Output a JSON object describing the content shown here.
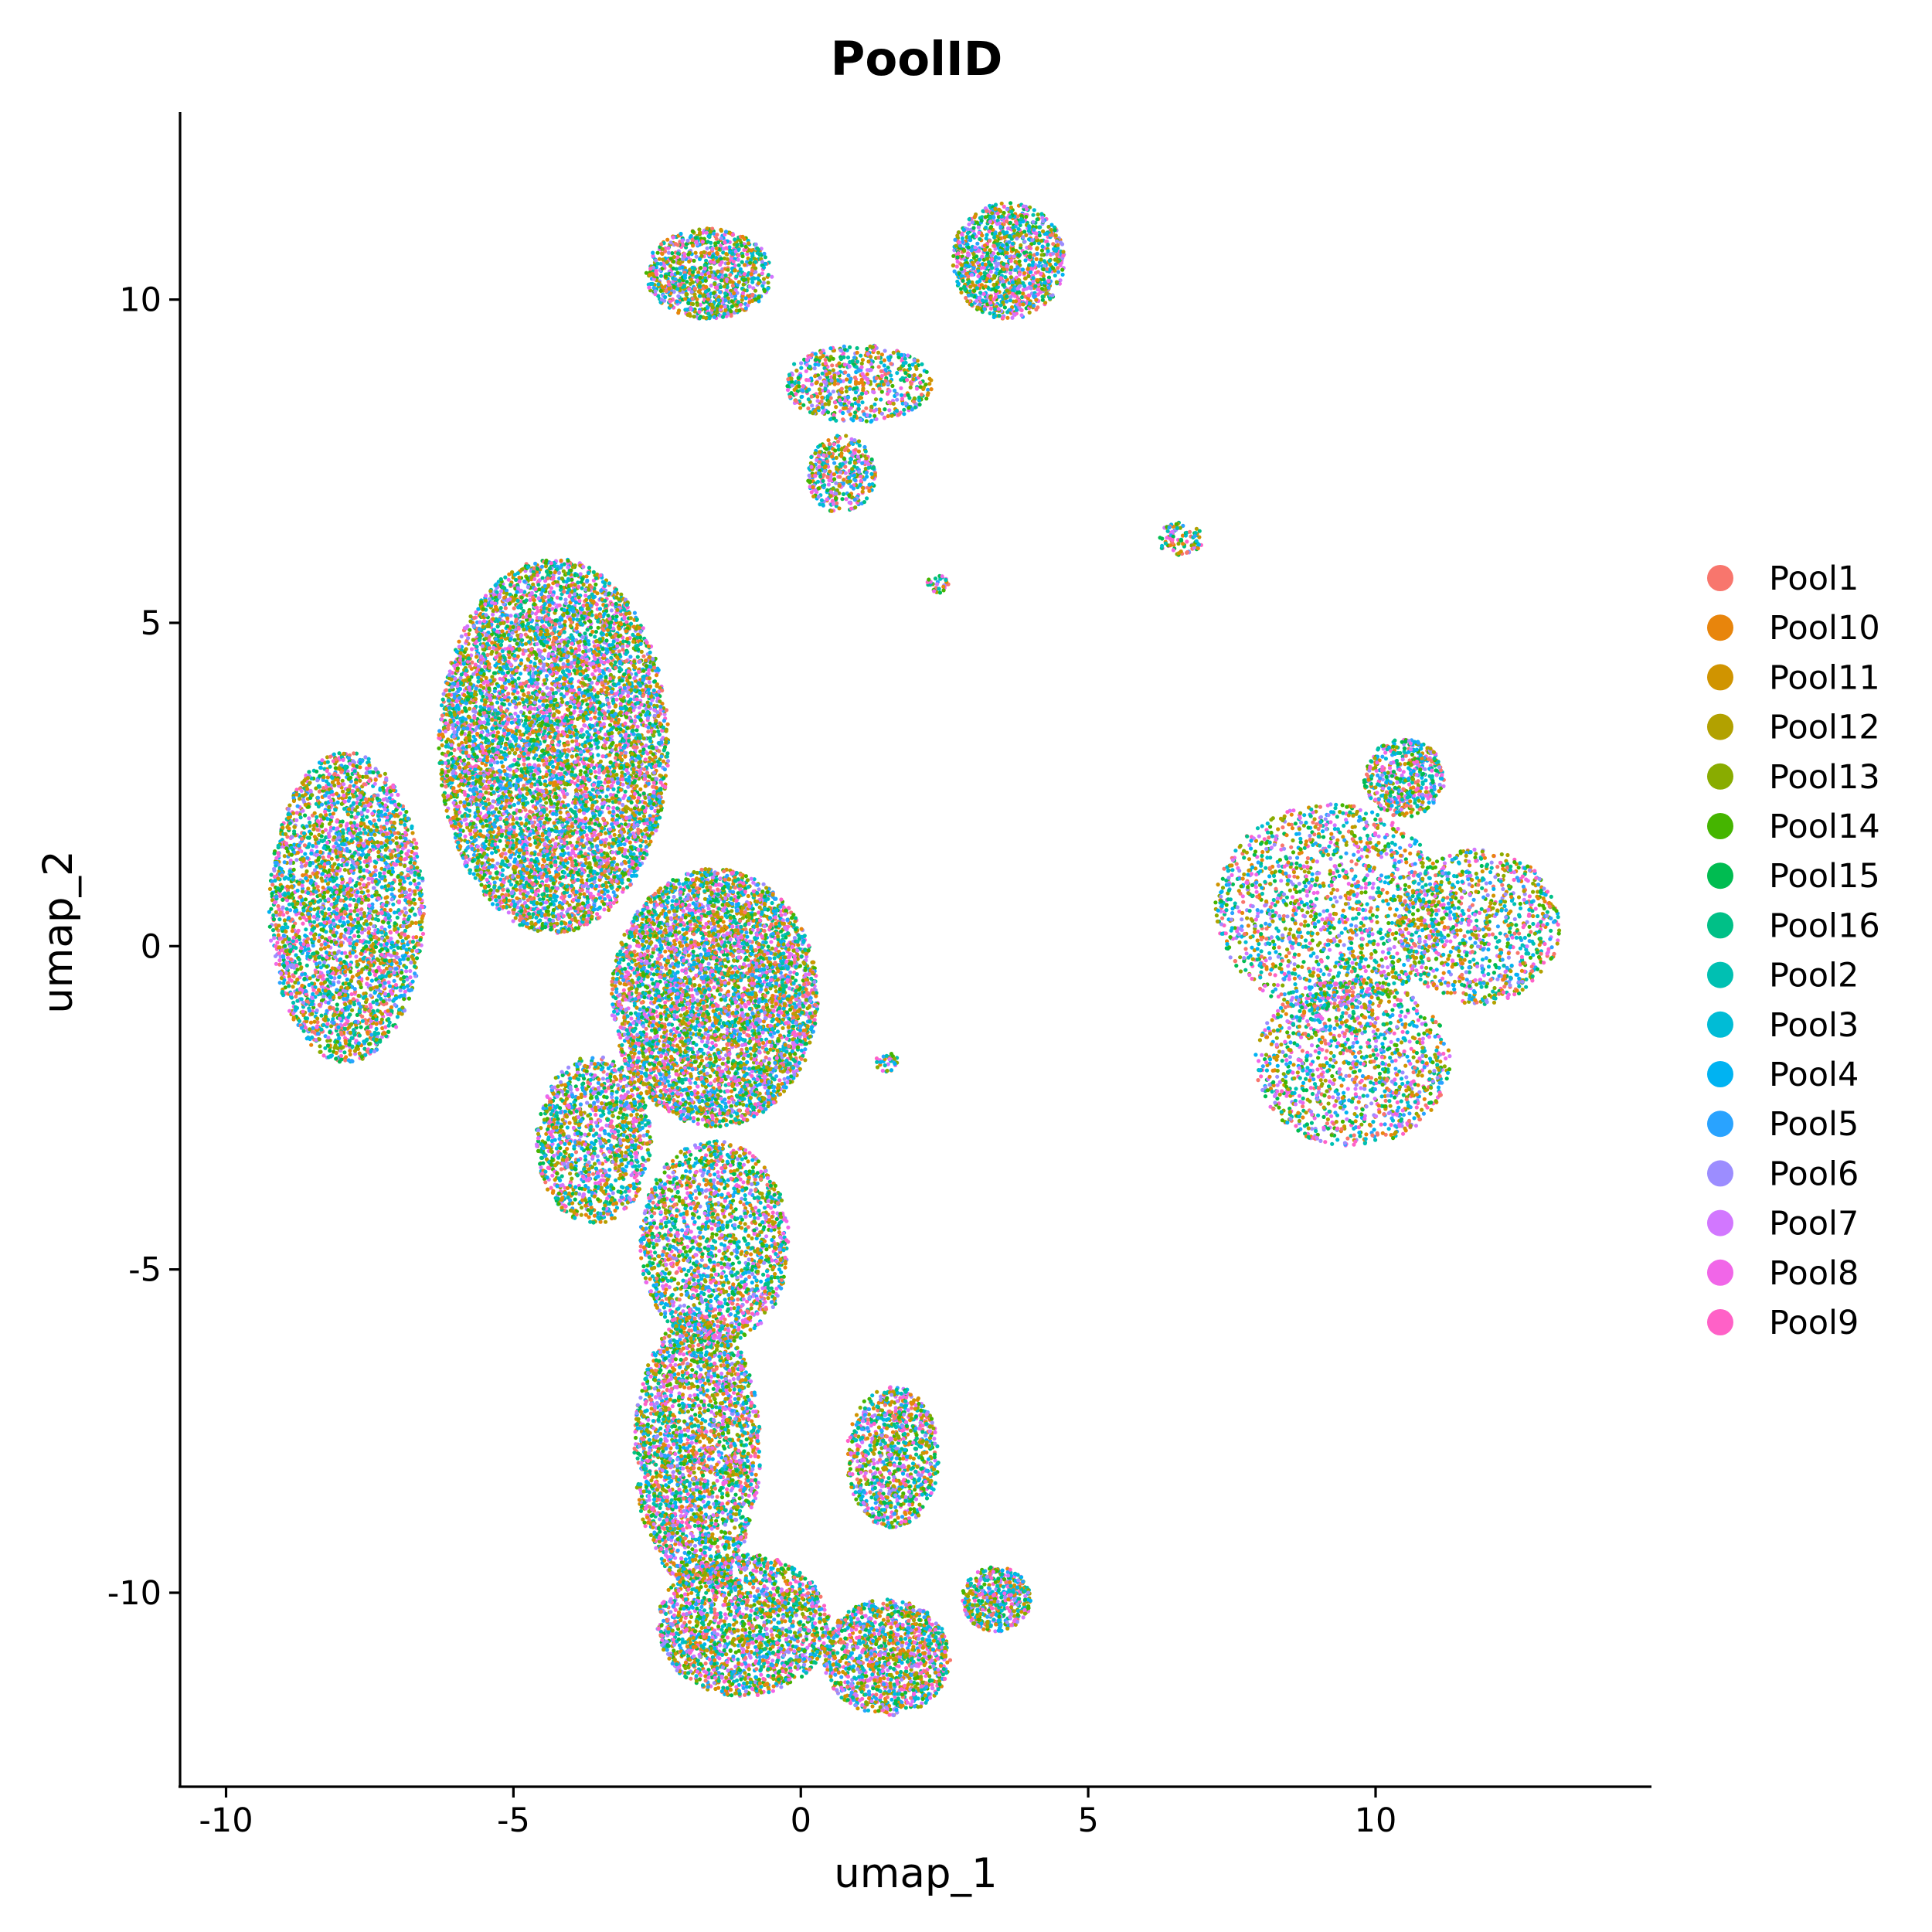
{
  "chart_data": {
    "type": "scatter",
    "title": "PoolID",
    "xlabel": "umap_1",
    "ylabel": "umap_2",
    "xlim": [
      -10.8,
      14.8
    ],
    "ylim": [
      -13.0,
      12.9
    ],
    "x_ticks": [
      -10,
      -5,
      0,
      5,
      10
    ],
    "y_ticks": [
      -10,
      -5,
      0,
      5,
      10
    ],
    "x_tick_labels": [
      "-10",
      "-5",
      "0",
      "5",
      "10"
    ],
    "y_tick_labels": [
      "-10",
      "-5",
      "0",
      "5",
      "10"
    ],
    "grid": false,
    "legend_position": "right",
    "series": [
      {
        "name": "Pool1",
        "color": "#F8766D"
      },
      {
        "name": "Pool10",
        "color": "#E8850C"
      },
      {
        "name": "Pool11",
        "color": "#D09400"
      },
      {
        "name": "Pool12",
        "color": "#B2A100"
      },
      {
        "name": "Pool13",
        "color": "#89AC00"
      },
      {
        "name": "Pool14",
        "color": "#45B500"
      },
      {
        "name": "Pool15",
        "color": "#00BC51"
      },
      {
        "name": "Pool16",
        "color": "#00C087"
      },
      {
        "name": "Pool2",
        "color": "#00C0B2"
      },
      {
        "name": "Pool3",
        "color": "#00BCD6"
      },
      {
        "name": "Pool4",
        "color": "#00B3F2"
      },
      {
        "name": "Pool5",
        "color": "#29A3FF"
      },
      {
        "name": "Pool6",
        "color": "#9C8DFF"
      },
      {
        "name": "Pool7",
        "color": "#D277FF"
      },
      {
        "name": "Pool8",
        "color": "#F166E8"
      },
      {
        "name": "Pool9",
        "color": "#FF61C7"
      }
    ],
    "point_regions": [
      {
        "cx": -7.9,
        "cy": 0.6,
        "rx": 1.35,
        "ry": 2.4,
        "weight": 10
      },
      {
        "cx": -4.3,
        "cy": 3.1,
        "rx": 2.0,
        "ry": 2.9,
        "weight": 22
      },
      {
        "cx": -1.5,
        "cy": -0.8,
        "rx": 1.8,
        "ry": 2.0,
        "weight": 15
      },
      {
        "cx": -3.6,
        "cy": -3.0,
        "rx": 1.0,
        "ry": 1.3,
        "weight": 4
      },
      {
        "cx": -1.5,
        "cy": -4.6,
        "rx": 1.3,
        "ry": 1.6,
        "weight": 6
      },
      {
        "cx": -1.8,
        "cy": -7.8,
        "rx": 1.1,
        "ry": 2.1,
        "weight": 8
      },
      {
        "cx": -1.0,
        "cy": -10.5,
        "rx": 1.5,
        "ry": 1.1,
        "weight": 6
      },
      {
        "cx": 1.6,
        "cy": -7.9,
        "rx": 0.8,
        "ry": 1.1,
        "weight": 3
      },
      {
        "cx": 1.5,
        "cy": -11.0,
        "rx": 1.1,
        "ry": 0.9,
        "weight": 4
      },
      {
        "cx": 3.4,
        "cy": -10.1,
        "rx": 0.6,
        "ry": 0.5,
        "weight": 1.5
      },
      {
        "cx": -1.6,
        "cy": 10.4,
        "rx": 1.1,
        "ry": 0.7,
        "weight": 3
      },
      {
        "cx": 3.6,
        "cy": 10.6,
        "rx": 1.0,
        "ry": 0.9,
        "weight": 3.5
      },
      {
        "cx": 1.0,
        "cy": 8.7,
        "rx": 1.3,
        "ry": 0.6,
        "weight": 2
      },
      {
        "cx": 0.7,
        "cy": 7.3,
        "rx": 0.6,
        "ry": 0.6,
        "weight": 1.2
      },
      {
        "cx": 9.2,
        "cy": 0.6,
        "rx": 2.0,
        "ry": 1.6,
        "weight": 5
      },
      {
        "cx": 11.8,
        "cy": 0.3,
        "rx": 1.4,
        "ry": 1.2,
        "weight": 3
      },
      {
        "cx": 9.6,
        "cy": -1.8,
        "rx": 1.7,
        "ry": 1.3,
        "weight": 4
      },
      {
        "cx": 10.5,
        "cy": 2.6,
        "rx": 0.7,
        "ry": 0.6,
        "weight": 1.5
      },
      {
        "cx": 6.6,
        "cy": 6.3,
        "rx": 0.4,
        "ry": 0.25,
        "weight": 0.3
      },
      {
        "cx": 2.4,
        "cy": 5.6,
        "rx": 0.2,
        "ry": 0.15,
        "weight": 0.1
      },
      {
        "cx": 1.5,
        "cy": -1.8,
        "rx": 0.2,
        "ry": 0.15,
        "weight": 0.1
      }
    ]
  }
}
